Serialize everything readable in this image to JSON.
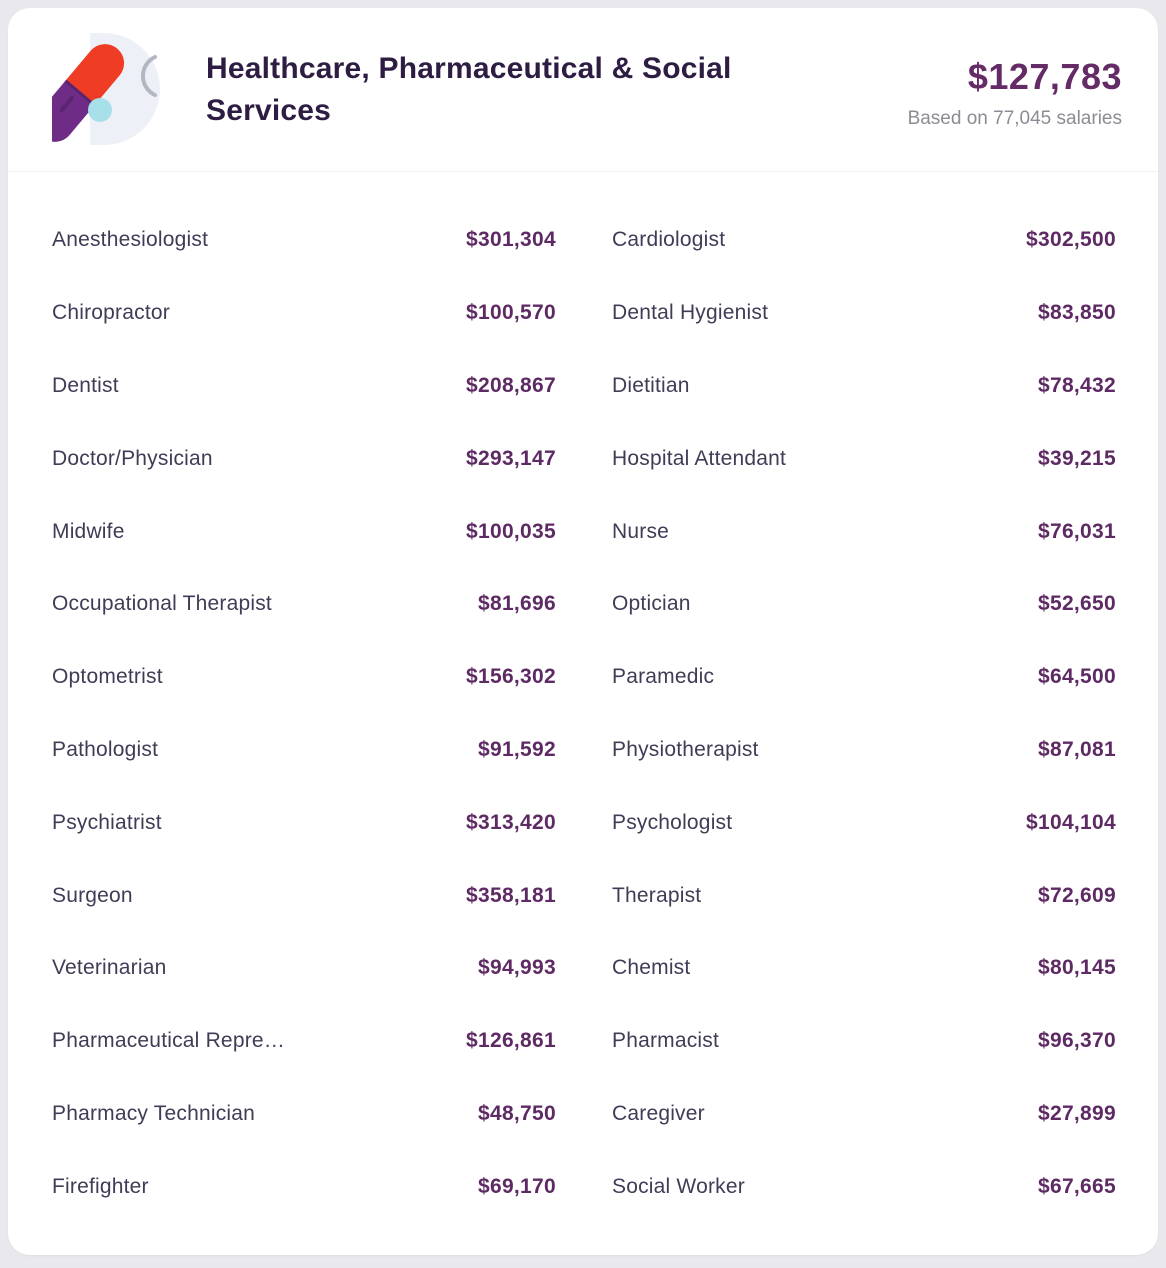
{
  "header": {
    "title": "Healthcare, Pharmaceutical & Social Services",
    "average_salary": "$127,783",
    "based_on": "Based on 77,045 salaries",
    "icon": "pill-capsule-icon"
  },
  "colors": {
    "page_background": "#e9e8ec",
    "card_background": "#ffffff",
    "title_text": "#2e1d43",
    "job_label_text": "#3f3d56",
    "salary_text": "#5e2a63",
    "muted_text": "#8c8c94",
    "pill_red": "#ee3c25",
    "pill_purple": "#6f2c86",
    "pill_dot_blue": "#a8e0ea"
  },
  "salary_table": {
    "columns": [
      {
        "rows": [
          {
            "title": "Anesthesiologist",
            "salary": "$301,304"
          },
          {
            "title": "Chiropractor",
            "salary": "$100,570"
          },
          {
            "title": "Dentist",
            "salary": "$208,867"
          },
          {
            "title": "Doctor/Physician",
            "salary": "$293,147"
          },
          {
            "title": "Midwife",
            "salary": "$100,035"
          },
          {
            "title": "Occupational Therapist",
            "salary": "$81,696"
          },
          {
            "title": "Optometrist",
            "salary": "$156,302"
          },
          {
            "title": "Pathologist",
            "salary": "$91,592"
          },
          {
            "title": "Psychiatrist",
            "salary": "$313,420"
          },
          {
            "title": "Surgeon",
            "salary": "$358,181"
          },
          {
            "title": "Veterinarian",
            "salary": "$94,993"
          },
          {
            "title": "Pharmaceutical Repre…",
            "salary": "$126,861"
          },
          {
            "title": "Pharmacy Technician",
            "salary": "$48,750"
          },
          {
            "title": "Firefighter",
            "salary": "$69,170"
          }
        ]
      },
      {
        "rows": [
          {
            "title": "Cardiologist",
            "salary": "$302,500"
          },
          {
            "title": "Dental Hygienist",
            "salary": "$83,850"
          },
          {
            "title": "Dietitian",
            "salary": "$78,432"
          },
          {
            "title": "Hospital Attendant",
            "salary": "$39,215"
          },
          {
            "title": "Nurse",
            "salary": "$76,031"
          },
          {
            "title": "Optician",
            "salary": "$52,650"
          },
          {
            "title": "Paramedic",
            "salary": "$64,500"
          },
          {
            "title": "Physiotherapist",
            "salary": "$87,081"
          },
          {
            "title": "Psychologist",
            "salary": "$104,104"
          },
          {
            "title": "Therapist",
            "salary": "$72,609"
          },
          {
            "title": "Chemist",
            "salary": "$80,145"
          },
          {
            "title": "Pharmacist",
            "salary": "$96,370"
          },
          {
            "title": "Caregiver",
            "salary": "$27,899"
          },
          {
            "title": "Social Worker",
            "salary": "$67,665"
          }
        ]
      }
    ]
  }
}
